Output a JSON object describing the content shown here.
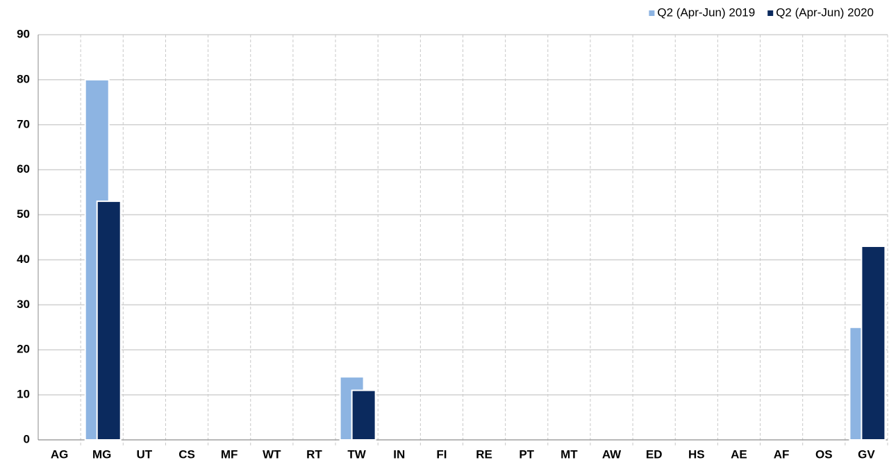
{
  "chart_data": {
    "type": "bar",
    "categories": [
      "AG",
      "MG",
      "UT",
      "CS",
      "MF",
      "WT",
      "RT",
      "TW",
      "IN",
      "FI",
      "RE",
      "PT",
      "MT",
      "AW",
      "ED",
      "HS",
      "AE",
      "AF",
      "OS",
      "GV"
    ],
    "series": [
      {
        "name": "Q2 (Apr-Jun) 2019",
        "color": "#8db4e2",
        "values": [
          0,
          80,
          0,
          0,
          0,
          0,
          0,
          14,
          0,
          0,
          0,
          0,
          0,
          0,
          0,
          0,
          0,
          0,
          0,
          25
        ]
      },
      {
        "name": "Q2 (Apr-Jun) 2020",
        "color": "#0b2a5e",
        "values": [
          0,
          53,
          0,
          0,
          0,
          0,
          0,
          11,
          0,
          0,
          0,
          0,
          0,
          0,
          0,
          0,
          0,
          0,
          0,
          43
        ]
      }
    ],
    "ylim": [
      0,
      90
    ],
    "yticks": [
      0,
      10,
      20,
      30,
      40,
      50,
      60,
      70,
      80,
      90
    ],
    "grid": true,
    "legend": "top-right"
  }
}
